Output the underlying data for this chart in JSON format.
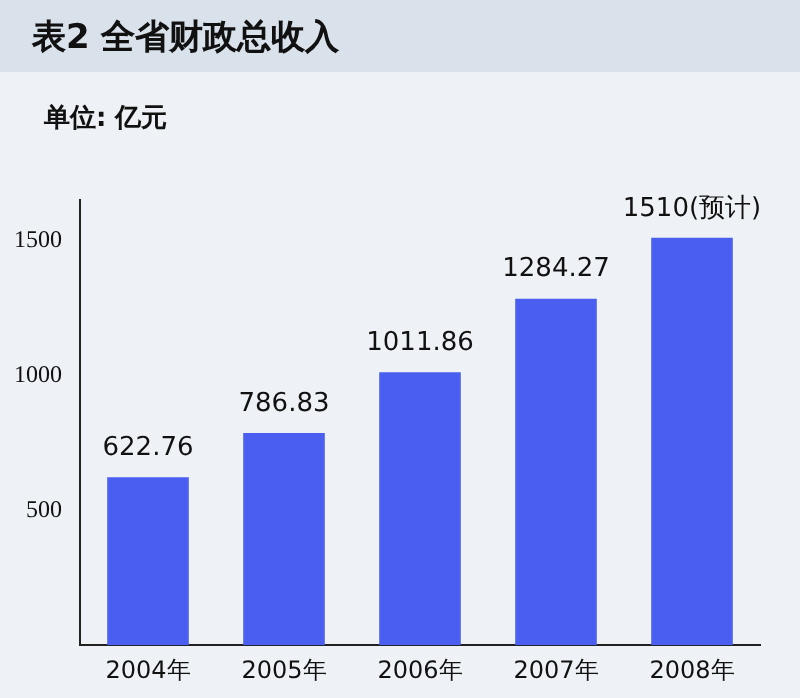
{
  "chart_data": {
    "type": "bar",
    "title": "表2  全省财政总收入",
    "annotations": [
      "单位: 亿元"
    ],
    "categories": [
      "2004年",
      "2005年",
      "2006年",
      "2007年",
      "2008年"
    ],
    "values": [
      622.76,
      786.83,
      1011.86,
      1284.27,
      1510
    ],
    "value_labels": [
      "622.76",
      "786.83",
      "1011.86",
      "1284.27",
      "1510(预计)"
    ],
    "color": "#4a5ff0",
    "ylim": [
      0,
      1650
    ],
    "yticks": [
      500,
      1000,
      1500
    ],
    "grid": false,
    "legend": false
  }
}
